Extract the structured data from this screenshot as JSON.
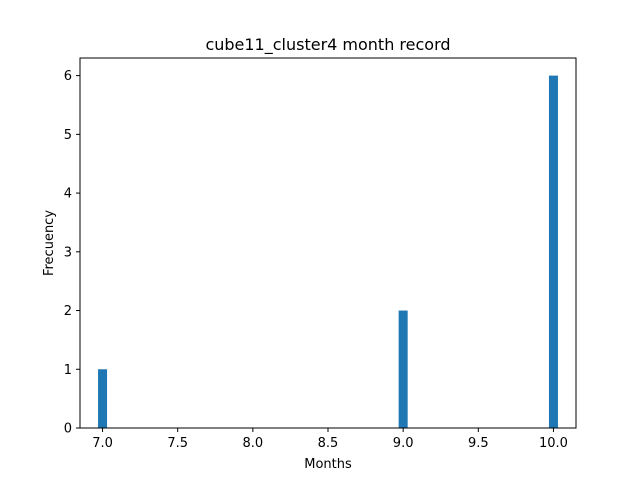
{
  "chart_data": {
    "type": "bar",
    "title": "cube11_cluster4 month record",
    "xlabel": "Months",
    "ylabel": "Frecuency",
    "xlim": [
      6.85,
      10.15
    ],
    "ylim": [
      0,
      6.3
    ],
    "x_ticks": [
      "7.0",
      "7.5",
      "8.0",
      "8.5",
      "9.0",
      "9.5",
      "10.0"
    ],
    "y_ticks": [
      "0",
      "1",
      "2",
      "3",
      "4",
      "5",
      "6"
    ],
    "bar_width": 0.06,
    "bars": [
      {
        "x": 7.0,
        "value": 1
      },
      {
        "x": 9.0,
        "value": 2
      },
      {
        "x": 10.0,
        "value": 6
      }
    ],
    "bar_color": "#1f77b4",
    "grid": false,
    "legend": null
  }
}
